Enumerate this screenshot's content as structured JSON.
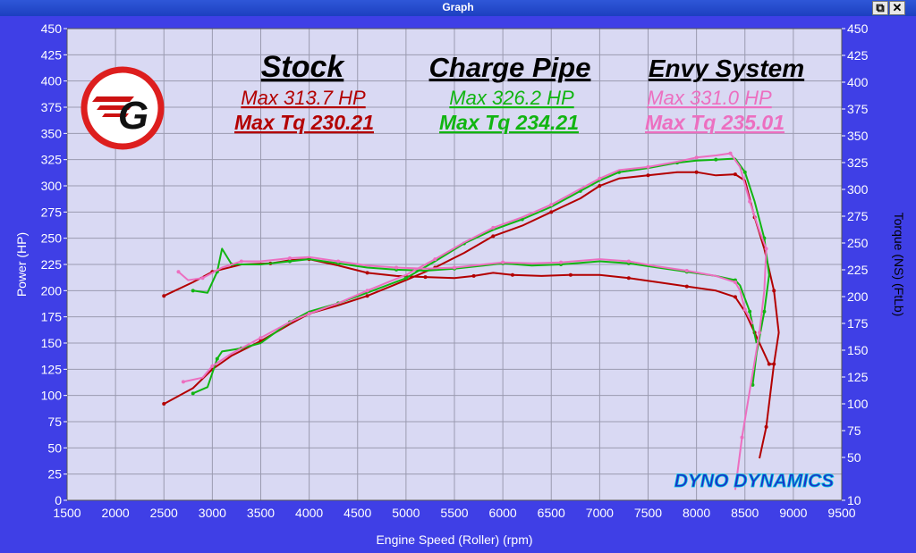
{
  "window": {
    "title": "Graph",
    "restore_icon": "restore-icon",
    "close_icon": "close-icon"
  },
  "colors": {
    "background": "#3f3fe6",
    "plot": "#d9d9f3",
    "grid": "#9a9ab0",
    "stock": "#b30000",
    "charge": "#11b511",
    "envy": "#ec6fc0"
  },
  "chart_data": {
    "type": "line",
    "xlabel": "Engine Speed (Roller) (rpm)",
    "ylabel_left": "Power (HP)",
    "ylabel_right": "Torque (NS) (FtLb)",
    "xlim": [
      1500,
      9500
    ],
    "ylim_left": [
      0,
      450
    ],
    "ylim_right": [
      10,
      450
    ],
    "xticks": [
      1500,
      2000,
      2500,
      3000,
      3500,
      4000,
      4500,
      5000,
      5500,
      6000,
      6500,
      7000,
      7500,
      8000,
      8500,
      9000,
      9500
    ],
    "yticks_left": [
      0,
      25,
      50,
      75,
      100,
      125,
      150,
      175,
      200,
      225,
      250,
      275,
      300,
      325,
      350,
      375,
      400,
      425,
      450
    ],
    "yticks_right": [
      10,
      50,
      75,
      100,
      125,
      150,
      175,
      200,
      225,
      250,
      275,
      300,
      325,
      350,
      375,
      400,
      425,
      450
    ],
    "grid": true,
    "annotations": [
      {
        "title": "Stock",
        "max_hp": "Max 313.7 HP",
        "max_tq": "Max Tq 230.21"
      },
      {
        "title": "Charge Pipe",
        "max_hp": "Max 326.2 HP",
        "max_tq": "Max Tq 234.21"
      },
      {
        "title": "Envy System",
        "max_hp": "Max 331.0 HP",
        "max_tq": "Max Tq 235.01"
      }
    ],
    "brand": "DYNO DYNAMICS",
    "series": [
      {
        "key": "stock_power",
        "color": "#b30000",
        "points": [
          [
            2500,
            92
          ],
          [
            2800,
            107
          ],
          [
            3000,
            125
          ],
          [
            3200,
            138
          ],
          [
            3500,
            152
          ],
          [
            3800,
            168
          ],
          [
            4000,
            178
          ],
          [
            4300,
            186
          ],
          [
            4600,
            195
          ],
          [
            5000,
            210
          ],
          [
            5300,
            222
          ],
          [
            5600,
            236
          ],
          [
            5900,
            252
          ],
          [
            6200,
            262
          ],
          [
            6500,
            275
          ],
          [
            6800,
            288
          ],
          [
            7000,
            300
          ],
          [
            7200,
            307
          ],
          [
            7500,
            310
          ],
          [
            7800,
            313
          ],
          [
            8000,
            313
          ],
          [
            8200,
            310
          ],
          [
            8400,
            311
          ],
          [
            8500,
            305
          ],
          [
            8600,
            270
          ],
          [
            8700,
            240
          ],
          [
            8800,
            200
          ],
          [
            8850,
            160
          ],
          [
            8800,
            130
          ],
          [
            8760,
            100
          ],
          [
            8720,
            70
          ],
          [
            8650,
            40
          ]
        ]
      },
      {
        "key": "stock_torque",
        "color": "#b30000",
        "points": [
          [
            2500,
            195
          ],
          [
            2800,
            208
          ],
          [
            3000,
            218
          ],
          [
            3300,
            225
          ],
          [
            3600,
            226
          ],
          [
            3800,
            229
          ],
          [
            4000,
            230
          ],
          [
            4300,
            224
          ],
          [
            4600,
            217
          ],
          [
            4900,
            214
          ],
          [
            5200,
            213
          ],
          [
            5500,
            212
          ],
          [
            5700,
            214
          ],
          [
            5900,
            217
          ],
          [
            6100,
            215
          ],
          [
            6400,
            214
          ],
          [
            6700,
            215
          ],
          [
            7000,
            215
          ],
          [
            7300,
            212
          ],
          [
            7600,
            208
          ],
          [
            7900,
            204
          ],
          [
            8200,
            200
          ],
          [
            8400,
            194
          ],
          [
            8500,
            180
          ],
          [
            8600,
            160
          ],
          [
            8700,
            140
          ],
          [
            8750,
            130
          ],
          [
            8800,
            130
          ]
        ]
      },
      {
        "key": "charge_power",
        "color": "#11b511",
        "points": [
          [
            2800,
            102
          ],
          [
            2950,
            108
          ],
          [
            3050,
            135
          ],
          [
            3100,
            142
          ],
          [
            3300,
            145
          ],
          [
            3500,
            150
          ],
          [
            3800,
            170
          ],
          [
            4000,
            180
          ],
          [
            4300,
            188
          ],
          [
            4600,
            198
          ],
          [
            5000,
            212
          ],
          [
            5300,
            228
          ],
          [
            5600,
            245
          ],
          [
            5900,
            258
          ],
          [
            6200,
            268
          ],
          [
            6500,
            280
          ],
          [
            6800,
            295
          ],
          [
            7000,
            305
          ],
          [
            7200,
            313
          ],
          [
            7500,
            317
          ],
          [
            7800,
            322
          ],
          [
            8000,
            324
          ],
          [
            8200,
            325
          ],
          [
            8400,
            326
          ],
          [
            8500,
            313
          ],
          [
            8600,
            285
          ],
          [
            8700,
            250
          ],
          [
            8750,
            215
          ],
          [
            8700,
            180
          ],
          [
            8620,
            140
          ],
          [
            8580,
            110
          ]
        ]
      },
      {
        "key": "charge_torque",
        "color": "#11b511",
        "points": [
          [
            2800,
            200
          ],
          [
            2950,
            198
          ],
          [
            3050,
            218
          ],
          [
            3100,
            240
          ],
          [
            3200,
            225
          ],
          [
            3500,
            225
          ],
          [
            3800,
            228
          ],
          [
            4000,
            230
          ],
          [
            4300,
            226
          ],
          [
            4600,
            222
          ],
          [
            4900,
            220
          ],
          [
            5200,
            219
          ],
          [
            5500,
            221
          ],
          [
            5800,
            224
          ],
          [
            6000,
            226
          ],
          [
            6300,
            224
          ],
          [
            6600,
            225
          ],
          [
            7000,
            228
          ],
          [
            7300,
            226
          ],
          [
            7600,
            222
          ],
          [
            7900,
            218
          ],
          [
            8200,
            214
          ],
          [
            8400,
            210
          ],
          [
            8450,
            205
          ],
          [
            8550,
            180
          ],
          [
            8620,
            150
          ]
        ]
      },
      {
        "key": "envy_power",
        "color": "#ec6fc0",
        "points": [
          [
            2700,
            113
          ],
          [
            2900,
            117
          ],
          [
            3000,
            128
          ],
          [
            3200,
            140
          ],
          [
            3500,
            155
          ],
          [
            3800,
            170
          ],
          [
            4000,
            178
          ],
          [
            4300,
            188
          ],
          [
            4600,
            200
          ],
          [
            5000,
            215
          ],
          [
            5300,
            230
          ],
          [
            5600,
            246
          ],
          [
            5900,
            260
          ],
          [
            6200,
            270
          ],
          [
            6500,
            282
          ],
          [
            6800,
            297
          ],
          [
            7000,
            307
          ],
          [
            7200,
            315
          ],
          [
            7500,
            318
          ],
          [
            7800,
            323
          ],
          [
            8000,
            327
          ],
          [
            8200,
            329
          ],
          [
            8350,
            331
          ],
          [
            8450,
            318
          ],
          [
            8550,
            285
          ],
          [
            8650,
            257
          ],
          [
            8720,
            240
          ],
          [
            8700,
            200
          ],
          [
            8650,
            160
          ],
          [
            8560,
            110
          ],
          [
            8470,
            60
          ],
          [
            8400,
            10
          ]
        ]
      },
      {
        "key": "envy_torque",
        "color": "#ec6fc0",
        "points": [
          [
            2650,
            218
          ],
          [
            2750,
            210
          ],
          [
            2900,
            212
          ],
          [
            3100,
            222
          ],
          [
            3300,
            228
          ],
          [
            3500,
            228
          ],
          [
            3800,
            231
          ],
          [
            4000,
            232
          ],
          [
            4300,
            228
          ],
          [
            4600,
            224
          ],
          [
            4900,
            222
          ],
          [
            5200,
            221
          ],
          [
            5500,
            222
          ],
          [
            5800,
            225
          ],
          [
            6000,
            227
          ],
          [
            6300,
            226
          ],
          [
            6600,
            227
          ],
          [
            7000,
            230
          ],
          [
            7300,
            228
          ],
          [
            7600,
            223
          ],
          [
            7900,
            219
          ],
          [
            8200,
            214
          ],
          [
            8400,
            208
          ],
          [
            8450,
            200
          ],
          [
            8500,
            182
          ],
          [
            8580,
            168
          ]
        ]
      }
    ]
  }
}
